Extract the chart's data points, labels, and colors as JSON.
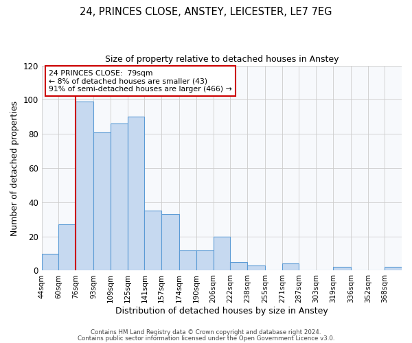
{
  "title1": "24, PRINCES CLOSE, ANSTEY, LEICESTER, LE7 7EG",
  "title2": "Size of property relative to detached houses in Anstey",
  "xlabel": "Distribution of detached houses by size in Anstey",
  "ylabel": "Number of detached properties",
  "bin_labels": [
    "44sqm",
    "60sqm",
    "76sqm",
    "93sqm",
    "109sqm",
    "125sqm",
    "141sqm",
    "157sqm",
    "174sqm",
    "190sqm",
    "206sqm",
    "222sqm",
    "238sqm",
    "255sqm",
    "271sqm",
    "287sqm",
    "303sqm",
    "319sqm",
    "336sqm",
    "352sqm",
    "368sqm"
  ],
  "bar_values": [
    10,
    27,
    99,
    81,
    86,
    90,
    35,
    33,
    12,
    12,
    20,
    5,
    3,
    0,
    4,
    0,
    0,
    2,
    0,
    0,
    2
  ],
  "bar_color": "#c6d9f0",
  "bar_edge_color": "#5b9bd5",
  "ylim": [
    0,
    120
  ],
  "yticks": [
    0,
    20,
    40,
    60,
    80,
    100,
    120
  ],
  "property_line_x": 76,
  "property_line_color": "#cc0000",
  "annotation_title": "24 PRINCES CLOSE:  79sqm",
  "annotation_line1": "← 8% of detached houses are smaller (43)",
  "annotation_line2": "91% of semi-detached houses are larger (466) →",
  "annotation_box_color": "#ffffff",
  "annotation_box_edge": "#cc0000",
  "footer1": "Contains HM Land Registry data © Crown copyright and database right 2024.",
  "footer2": "Contains public sector information licensed under the Open Government Licence v3.0.",
  "bin_edges": [
    44,
    60,
    76,
    93,
    109,
    125,
    141,
    157,
    174,
    190,
    206,
    222,
    238,
    255,
    271,
    287,
    303,
    319,
    336,
    352,
    368,
    384
  ]
}
